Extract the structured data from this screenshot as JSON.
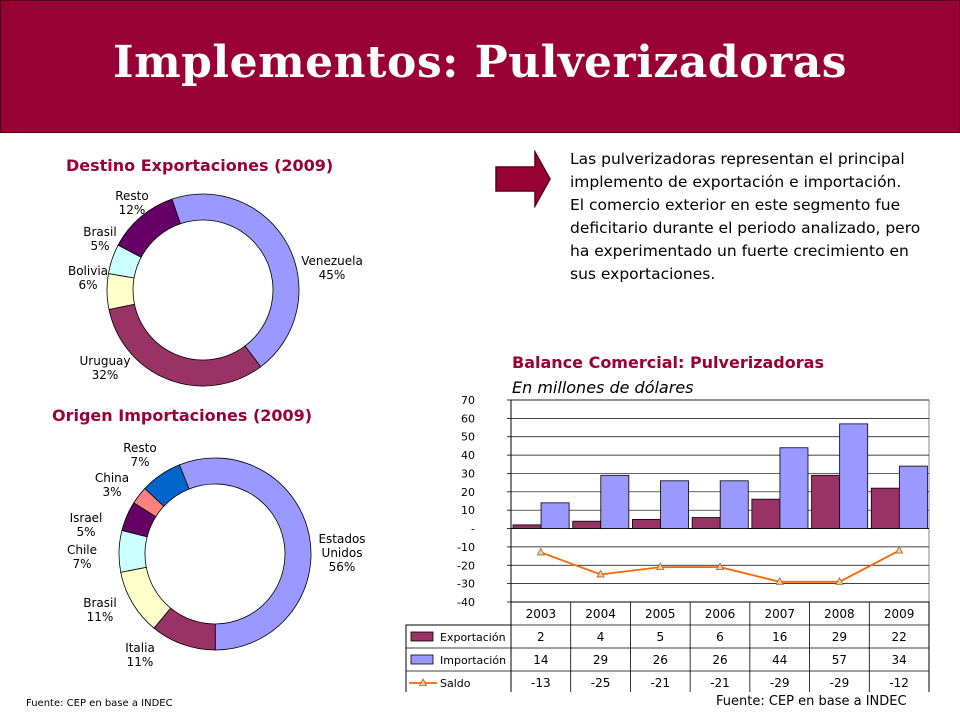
{
  "title": "Implementos: Pulverizadoras",
  "blurb": {
    "p1": "Las pulverizadoras representan el principal implemento de exportación e importación.",
    "p2": "El comercio exterior en este segmento fue deficitario durante el periodo analizado, pero ha experimentado un fuerte crecimiento en sus exportaciones."
  },
  "colors": {
    "banner": "#990033",
    "exportacion": "#993366",
    "importacion": "#9999FF",
    "saldo": "#FF6600"
  },
  "source_left": "Fuente: CEP en base a INDEC",
  "source_right": "Fuente: CEP en base a INDEC",
  "chart_data": [
    {
      "type": "pie",
      "variant": "donut",
      "title": "Destino Exportaciones (2009)",
      "slices": [
        {
          "label": "Venezuela",
          "value": 45,
          "value_label": "45%",
          "color": "#9999FF"
        },
        {
          "label": "Uruguay",
          "value": 32,
          "value_label": "32%",
          "color": "#993366"
        },
        {
          "label": "Bolivia",
          "value": 6,
          "value_label": "6%",
          "color": "#FFFFCC"
        },
        {
          "label": "Brasil",
          "value": 5,
          "value_label": "5%",
          "color": "#CCFFFF"
        },
        {
          "label": "Resto",
          "value": 12,
          "value_label": "12%",
          "color": "#660066"
        }
      ]
    },
    {
      "type": "pie",
      "variant": "donut",
      "title": "Origen Importaciones (2009)",
      "slices": [
        {
          "label": "Estados Unidos",
          "value": 56,
          "value_label": "56%",
          "color": "#9999FF"
        },
        {
          "label": "Italia",
          "value": 11,
          "value_label": "11%",
          "color": "#993366"
        },
        {
          "label": "Brasil",
          "value": 11,
          "value_label": "11%",
          "color": "#FFFFCC"
        },
        {
          "label": "Chile",
          "value": 7,
          "value_label": "7%",
          "color": "#CCFFFF"
        },
        {
          "label": "Israel",
          "value": 5,
          "value_label": "5%",
          "color": "#660066"
        },
        {
          "label": "China",
          "value": 3,
          "value_label": "3%",
          "color": "#FF8080"
        },
        {
          "label": "Resto",
          "value": 7,
          "value_label": "7%",
          "color": "#0066CC"
        }
      ]
    },
    {
      "type": "bar",
      "title": "Balance Comercial: Pulverizadoras",
      "subtitle": "En millones de dólares",
      "categories": [
        "2003",
        "2004",
        "2005",
        "2006",
        "2007",
        "2008",
        "2009"
      ],
      "series": [
        {
          "name": "Exportación",
          "kind": "bar",
          "values": [
            2,
            4,
            5,
            6,
            16,
            29,
            22
          ]
        },
        {
          "name": "Importación",
          "kind": "bar",
          "values": [
            14,
            29,
            26,
            26,
            44,
            57,
            34
          ]
        },
        {
          "name": "Saldo",
          "kind": "line",
          "values": [
            -13,
            -25,
            -21,
            -21,
            -29,
            -29,
            -12
          ]
        }
      ],
      "ylim": [
        -40,
        70
      ],
      "yticks": [
        -40,
        -30,
        -20,
        -10,
        0,
        10,
        20,
        30,
        40,
        50,
        60,
        70
      ],
      "ytick_labels": [
        "-40",
        "-30",
        "-20",
        "-10",
        "-",
        "10",
        "20",
        "30",
        "40",
        "50",
        "60",
        "70"
      ],
      "grid": true,
      "data_table": true
    }
  ]
}
